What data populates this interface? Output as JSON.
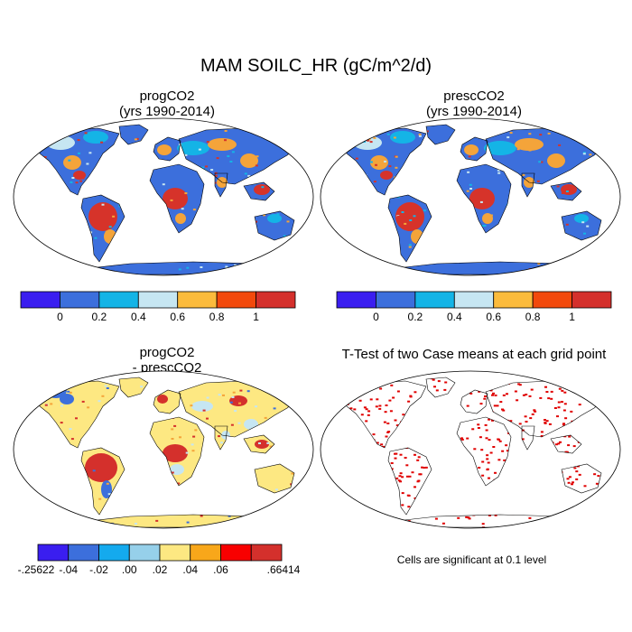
{
  "title": "MAM SOILC_HR (gC/m^2/d)",
  "panels": [
    {
      "name": "progCO2",
      "line1": "progCO2",
      "line2": "(yrs 1990-2014)"
    },
    {
      "name": "prescCO2",
      "line1": "prescCO2",
      "line2": "(yrs 1990-2014)"
    },
    {
      "name": "diff",
      "line1": "progCO2",
      "line2": "- prescCO2"
    },
    {
      "name": "ttest",
      "line1": "T-Test of two Case means at each grid point",
      "line2": ""
    }
  ],
  "colorbar_main": {
    "colors": [
      "#3a1ef0",
      "#3c6fdc",
      "#14b4e6",
      "#c6e6f2",
      "#fbbb3c",
      "#f2490c",
      "#d4302c"
    ],
    "labels": [
      "0",
      "0.2",
      "0.4",
      "0.6",
      "0.8",
      "1"
    ]
  },
  "colorbar_diff": {
    "colors": [
      "#3a1ef0",
      "#3c6fdc",
      "#14aaee",
      "#96d0ea",
      "#fde882",
      "#f8a71a",
      "#f80000",
      "#d4302c"
    ],
    "labels": [
      "-.25622",
      "-.04",
      "-.02",
      ".00",
      ".02",
      ".04",
      ".06",
      ".66414"
    ]
  },
  "significance_note": "Cells are significant at 0.1 level",
  "colors": {
    "land_high": "#d6332a",
    "land_mid": "#f4a43a",
    "land_low": "#3c6fdc",
    "land_light": "#c6e6f2",
    "land_cyan": "#14b4e6",
    "diff_base": "#fde882",
    "diff_pos": "#d4302c",
    "diff_neg": "#3c6fdc",
    "significant": "#e00000"
  }
}
